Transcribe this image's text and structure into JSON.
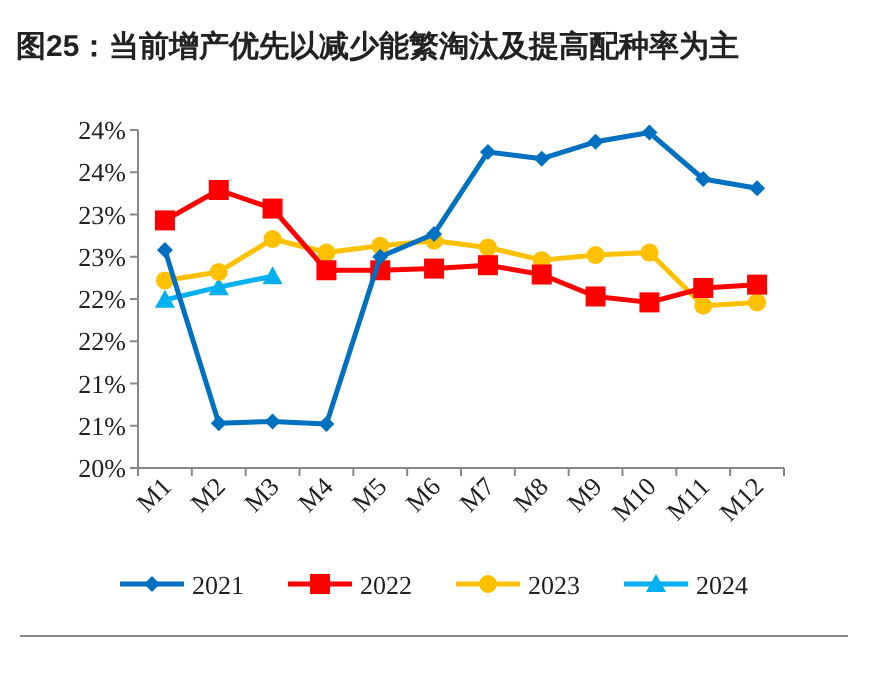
{
  "chart_data": {
    "type": "line",
    "title": "图25：当前增产优先以减少能繁淘汰及提高配种率为主",
    "categories": [
      "M1",
      "M2",
      "M3",
      "M4",
      "M5",
      "M6",
      "M7",
      "M8",
      "M9",
      "M10",
      "M11",
      "M12"
    ],
    "ylim": [
      20,
      24
    ],
    "yticks": [
      {
        "value": 20,
        "label": "20%"
      },
      {
        "value": 20.5,
        "label": "21%"
      },
      {
        "value": 21,
        "label": "21%"
      },
      {
        "value": 21.5,
        "label": "22%"
      },
      {
        "value": 22,
        "label": "22%"
      },
      {
        "value": 22.5,
        "label": "23%"
      },
      {
        "value": 23,
        "label": "23%"
      },
      {
        "value": 23.5,
        "label": "24%"
      },
      {
        "value": 24,
        "label": "24%"
      }
    ],
    "grid": false,
    "legend": "bottom",
    "series": [
      {
        "name": "2021",
        "color": "#0070c0",
        "marker": "diamond",
        "values": [
          22.58,
          20.53,
          20.55,
          20.52,
          22.5,
          22.77,
          23.74,
          23.66,
          23.86,
          23.97,
          23.42,
          23.31
        ]
      },
      {
        "name": "2022",
        "color": "#ff0000",
        "marker": "square",
        "values": [
          22.93,
          23.29,
          23.07,
          22.34,
          22.34,
          22.36,
          22.4,
          22.29,
          22.03,
          21.96,
          22.13,
          22.17
        ]
      },
      {
        "name": "2023",
        "color": "#ffc000",
        "marker": "circle",
        "values": [
          22.22,
          22.32,
          22.71,
          22.55,
          22.63,
          22.69,
          22.61,
          22.46,
          22.52,
          22.55,
          21.92,
          21.96
        ]
      },
      {
        "name": "2024",
        "color": "#00b0f0",
        "marker": "triangle",
        "values": [
          21.99,
          22.14,
          22.27,
          null,
          null,
          null,
          null,
          null,
          null,
          null,
          null,
          null
        ]
      }
    ]
  }
}
